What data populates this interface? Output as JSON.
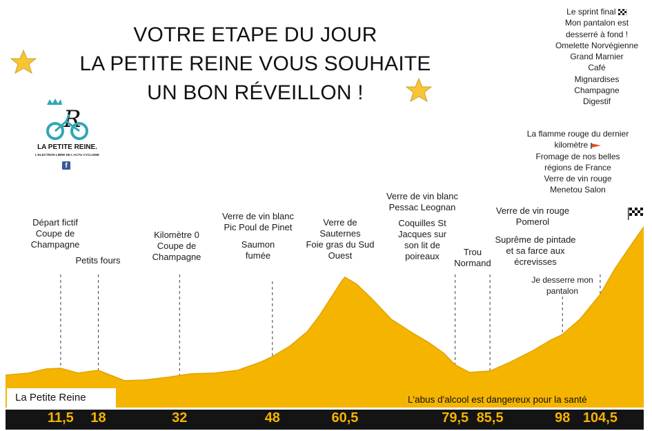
{
  "title_lines": [
    "VOTRE ETAPE DU JOUR",
    "LA PETITE REINE VOUS SOUHAITE",
    "UN BON RÉVEILLON !"
  ],
  "logo": {
    "letter": "R",
    "name": "LA PETITE REINE.",
    "tagline": "L'ELECTRON LIBRE DE L'ACTU CYCLISME",
    "social": "f"
  },
  "annotations": {
    "km_11_5": [
      "Départ fictif",
      "Coupe de",
      "Champagne"
    ],
    "km_18": [
      "Petits fours"
    ],
    "km_32": [
      "Kilomètre 0",
      "Coupe de",
      "Champagne"
    ],
    "km_48_wine": [
      "Verre de vin blanc",
      "Pic Poul de Pinet"
    ],
    "km_48_food": [
      "Saumon",
      "fumée"
    ],
    "km_60_5": [
      "Verre de",
      "Sauternes",
      "Foie gras du Sud",
      "Ouest"
    ],
    "km_79_5_wine": [
      "Verre de vin blanc",
      "Pessac Leognan"
    ],
    "km_79_5_food": [
      "Coquilles St",
      "Jacques sur",
      "son lit de",
      "poireaux"
    ],
    "km_85_5": [
      "Trou",
      "Normand"
    ],
    "km_98_wine": [
      "Verre de vin rouge",
      "Pomerol"
    ],
    "km_98_food": [
      "Suprême de pintade",
      "et sa farce aux",
      "écrevisses"
    ],
    "km_98_pantalon": [
      "Je desserre mon",
      "pantalon"
    ],
    "flamme_rouge": [
      "La flamme rouge du dernier",
      "kilomètre",
      "Fromage de nos belles",
      "régions de France",
      "Verre de vin rouge",
      "Menetou Salon"
    ],
    "sprint_final": [
      "Le sprint final",
      "Mon pantalon est",
      "desserré à fond !",
      "Omelette Norvégienne",
      "Grand Marnier",
      "Café",
      "Mignardises",
      "Champagne",
      "Digestif"
    ]
  },
  "race_label": "La Petite Reine",
  "warning": "L'abus d'alcool est dangereux pour la santé",
  "colors": {
    "profile": "#f5b400",
    "band": "#141414",
    "km_text": "#f5b400"
  },
  "icons": {
    "star": "star-icon",
    "finish": "checkered-flag-icon",
    "flamme": "red-flag-icon"
  },
  "chart_data": {
    "type": "area",
    "title": "VOTRE ETAPE DU JOUR",
    "xlabel": "",
    "ylabel": "",
    "x_ticks": [
      "11,5",
      "18",
      "32",
      "48",
      "60,5",
      "79,5",
      "85,5",
      "98",
      "104,5"
    ],
    "x": [
      2.0,
      6.0,
      9.0,
      11.5,
      14.5,
      17.0,
      18.0,
      19.5,
      22.5,
      26.0,
      30.0,
      34.0,
      38.0,
      42.0,
      46.0,
      48.0,
      51.0,
      54.0,
      56.0,
      58.0,
      60.0,
      60.5,
      62.5,
      65.0,
      68.5,
      72.0,
      75.0,
      77.5,
      79.5,
      82.0,
      85.5,
      89.0,
      93.0,
      96.0,
      98.0,
      101.0,
      104.5,
      107.0,
      110.0,
      112.0
    ],
    "y": [
      1,
      4,
      10,
      11,
      4,
      7,
      8,
      3,
      -7,
      -6,
      -2,
      3,
      4,
      8,
      20,
      28,
      43,
      64,
      86,
      112,
      138,
      143,
      133,
      113,
      82,
      63,
      48,
      33,
      16,
      5,
      7,
      20,
      37,
      52,
      60,
      82,
      118,
      155,
      192,
      216
    ],
    "ylim": [
      -10,
      230
    ],
    "grid": false,
    "legend": "none"
  }
}
